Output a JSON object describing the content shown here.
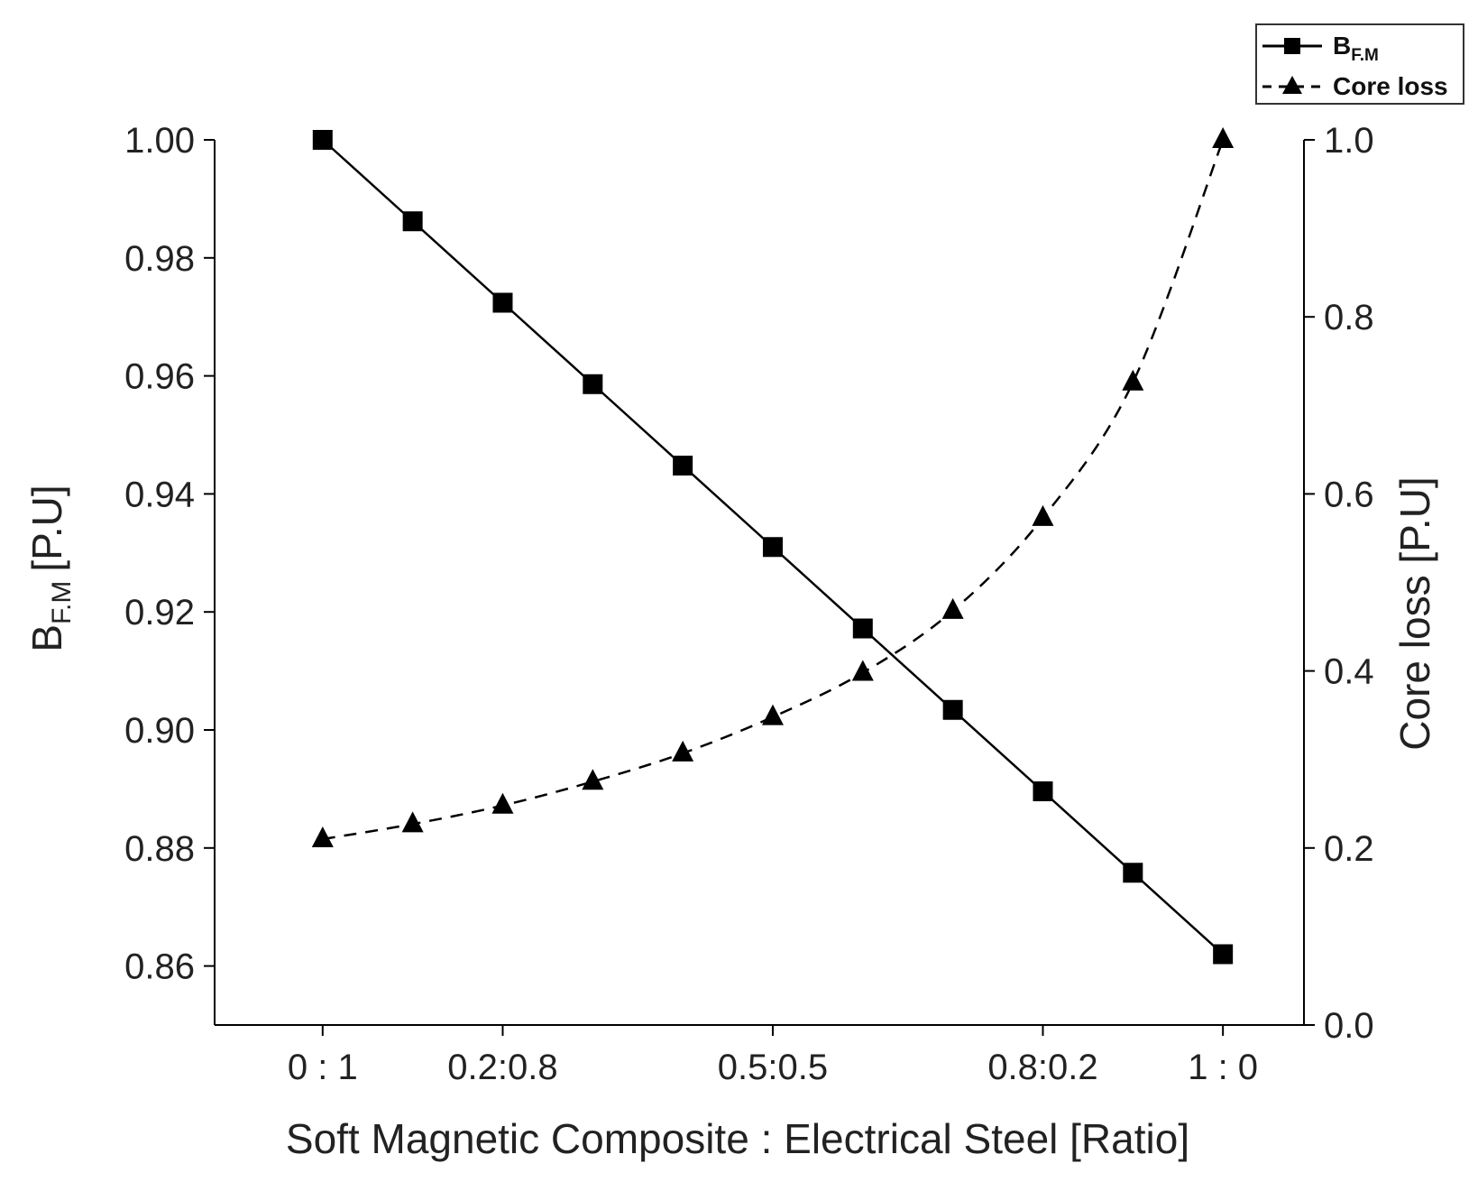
{
  "chart_data": {
    "type": "line",
    "title": "",
    "xlabel": "Soft Magnetic Composite : Electrical Steel [Ratio]",
    "ylabel_left": "B",
    "ylabel_left_sub": "F.M",
    "ylabel_left_unit": "[P.U]",
    "ylabel_right": "Core loss [P.U]",
    "x": [
      0,
      0.1,
      0.2,
      0.3,
      0.4,
      0.5,
      0.6,
      0.7,
      0.8,
      0.9,
      1.0
    ],
    "x_ticks": [
      {
        "value": 0.0,
        "label": "0 : 1"
      },
      {
        "value": 0.2,
        "label": "0.2:0.8"
      },
      {
        "value": 0.5,
        "label": "0.5:0.5"
      },
      {
        "value": 0.8,
        "label": "0.8:0.2"
      },
      {
        "value": 1.0,
        "label": "1 : 0"
      }
    ],
    "xlim": [
      -0.12,
      1.09
    ],
    "y_left": {
      "lim": [
        0.85,
        1.0
      ],
      "ticks": [
        "0.86",
        "0.88",
        "0.90",
        "0.92",
        "0.94",
        "0.96",
        "0.98",
        "1.00"
      ]
    },
    "y_right": {
      "lim": [
        0.0,
        1.0
      ],
      "ticks": [
        "0.0",
        "0.2",
        "0.4",
        "0.6",
        "0.8",
        "1.0"
      ]
    },
    "series": [
      {
        "name": "B",
        "name_sub": "F.M",
        "axis": "left",
        "marker": "square",
        "linestyle": "solid",
        "values": [
          1.0,
          0.9862,
          0.9724,
          0.9586,
          0.9448,
          0.931,
          0.9172,
          0.9034,
          0.8896,
          0.8758,
          0.862
        ]
      },
      {
        "name": "Core loss",
        "axis": "right",
        "marker": "triangle",
        "linestyle": "dashed",
        "values": [
          0.21,
          0.227,
          0.248,
          0.275,
          0.307,
          0.348,
          0.398,
          0.468,
          0.573,
          0.726,
          1.0
        ]
      }
    ],
    "legend_position": "top-right",
    "grid": false
  }
}
